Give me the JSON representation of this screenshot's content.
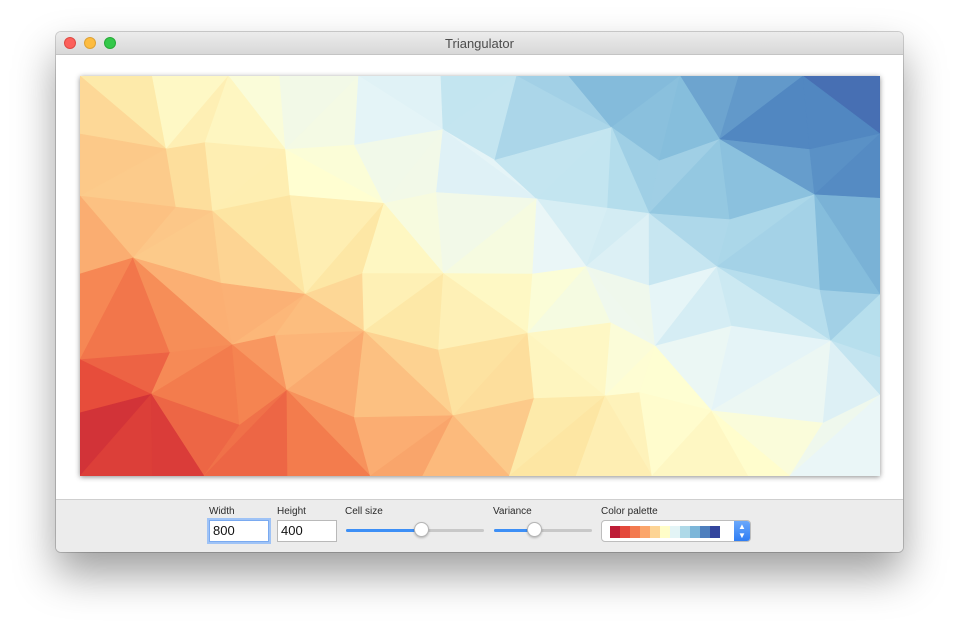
{
  "window": {
    "title": "Triangulator"
  },
  "canvas": {
    "gradient_colors": [
      "#be1d37",
      "#e64a3a",
      "#f58350",
      "#fcb87a",
      "#fde6a3",
      "#fffed0",
      "#e9f6f8",
      "#b9e0ee",
      "#86bedc",
      "#4f85c0",
      "#3a4fa0"
    ]
  },
  "controls": {
    "width_label": "Width",
    "width_value": "800",
    "height_label": "Height",
    "height_value": "400",
    "cell_size_label": "Cell size",
    "cell_size_level": 0.55,
    "variance_label": "Variance",
    "variance_level": 0.42,
    "palette_label": "Color palette",
    "palette_swatches": [
      "#be1d37",
      "#e4493b",
      "#f37a4f",
      "#fba56a",
      "#fdd495",
      "#fffdc8",
      "#e3f4f6",
      "#aed9e8",
      "#7cb6d9",
      "#4e7fbe",
      "#33459d"
    ]
  },
  "accent_color": "#3d8ff6"
}
